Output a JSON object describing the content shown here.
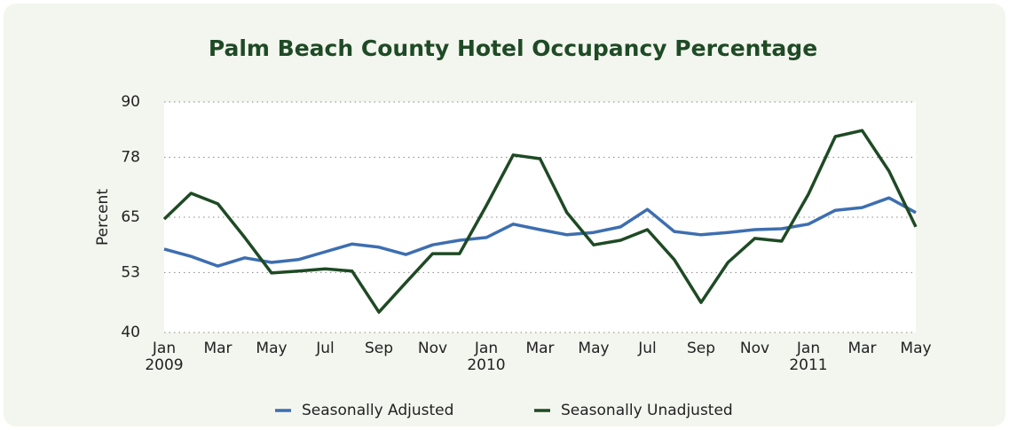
{
  "chart_data": {
    "type": "line",
    "title": "Palm Beach County Hotel Occupancy Percentage",
    "y_label": "Percent",
    "categories": [
      "Jan\n2009",
      null,
      "Mar",
      null,
      "May",
      null,
      "Jul",
      null,
      "Sep",
      null,
      "Nov",
      null,
      "Jan\n2010",
      null,
      "Mar",
      null,
      "May",
      null,
      "Jul",
      null,
      "Sep",
      null,
      "Nov",
      null,
      "Jan\n2011",
      null,
      "Mar",
      null,
      "May"
    ],
    "series": [
      {
        "name": "Seasonally Adjusted",
        "color": "#3d6eb0",
        "values": [
          58.1,
          56.5,
          54.4,
          56.2,
          55.2,
          55.8,
          57.5,
          59.2,
          58.5,
          56.9,
          59,
          60,
          60.6,
          63.5,
          62.3,
          61.2,
          61.7,
          62.9,
          66.7,
          61.9,
          61.2,
          61.7,
          62.3,
          62.5,
          63.5,
          66.5,
          67.1,
          69.2,
          66
        ]
      },
      {
        "name": "Seasonally Unadjusted",
        "color": "#1e4a24",
        "values": [
          64.6,
          70.2,
          67.9,
          60.6,
          52.9,
          53.3,
          53.8,
          53.3,
          44.4,
          50.8,
          57.1,
          57.1,
          67.5,
          78.5,
          77.7,
          66,
          59,
          60,
          62.3,
          55.8,
          46.5,
          55.2,
          60.4,
          59.8,
          70,
          82.5,
          83.8,
          75,
          62.9
        ]
      }
    ],
    "ylim": [
      40,
      90
    ],
    "yticks": [
      40,
      53,
      65,
      78,
      90
    ],
    "grid": true,
    "legend": "bottom"
  }
}
